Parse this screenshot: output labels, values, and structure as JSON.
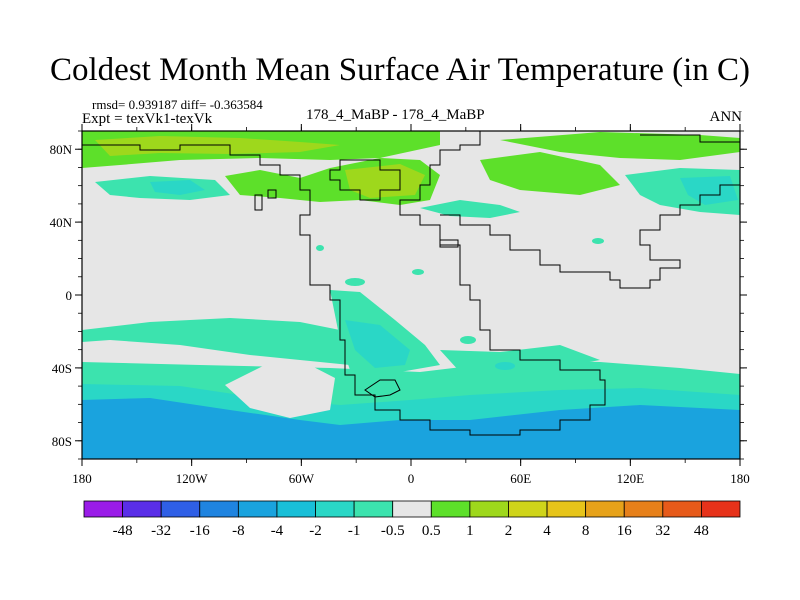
{
  "title": "Coldest Month Mean Surface Air Temperature (in C)",
  "stats_line": "rmsd= 0.939187 diff= -0.363584",
  "expt_line": "Expt = texVk1-texVk",
  "center_label": "178_4_MaBP - 178_4_MaBP",
  "right_label": "ANN",
  "map": {
    "lon_range": [
      -180,
      180
    ],
    "lat_range": [
      -90,
      90
    ],
    "lat_ticks": [
      {
        "value": 80,
        "label": "80N"
      },
      {
        "value": 40,
        "label": "40N"
      },
      {
        "value": 0,
        "label": "0"
      },
      {
        "value": -40,
        "label": "40S"
      },
      {
        "value": -80,
        "label": "80S"
      }
    ],
    "lon_ticks": [
      {
        "value": -180,
        "label": "180"
      },
      {
        "value": -120,
        "label": "120W"
      },
      {
        "value": -60,
        "label": "60W"
      },
      {
        "value": 0,
        "label": "0"
      },
      {
        "value": 60,
        "label": "60E"
      },
      {
        "value": 120,
        "label": "120E"
      },
      {
        "value": 180,
        "label": "180"
      }
    ]
  },
  "colorbar": {
    "colors": [
      "#9a1ce8",
      "#5a2ee8",
      "#2f5fe6",
      "#1f84e0",
      "#1aa3de",
      "#19bfd8",
      "#2ad7c6",
      "#3ce3ae",
      "#e6e6e6",
      "#5de02a",
      "#9ed81c",
      "#cfd41a",
      "#e6c41a",
      "#e6a21a",
      "#e6801a",
      "#e65a1a",
      "#e6321a"
    ],
    "labels": [
      "-48",
      "-32",
      "-16",
      "-8",
      "-4",
      "-2",
      "-1",
      "-0.5",
      "0.5",
      "1",
      "2",
      "4",
      "8",
      "16",
      "32",
      "48"
    ]
  },
  "colors": {
    "background": "#e6e6e6",
    "cool_light": "#3ce3ae",
    "cool_mid": "#2ad7c6",
    "cool_dark": "#19bfd8",
    "cold": "#1aa3de",
    "warm_light": "#5de02a",
    "warm_mid": "#9ed81c"
  }
}
